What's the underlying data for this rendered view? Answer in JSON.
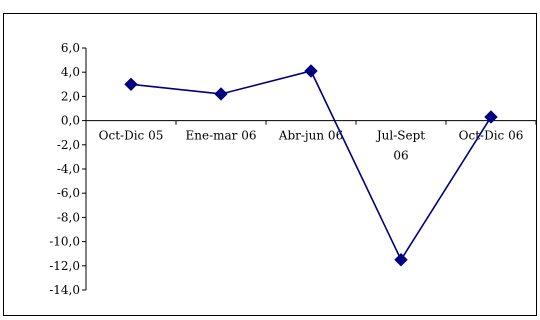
{
  "chart_data": {
    "type": "line",
    "categories": [
      [
        "Oct-Dic 05"
      ],
      [
        "Ene-mar 06"
      ],
      [
        "Abr-jun 06"
      ],
      [
        "Jul-Sept",
        "06"
      ],
      [
        "Oct-Dic 06"
      ]
    ],
    "series": [
      {
        "values": [
          3.0,
          2.2,
          4.1,
          -11.5,
          0.3
        ]
      }
    ],
    "y_ticks": [
      "6,0",
      "4,0",
      "2,0",
      "0,0",
      "-2,0",
      "-4,0",
      "-6,0",
      "-8,0",
      "-10,0",
      "-12,0",
      "-14,0"
    ],
    "ylim": [
      -14,
      6
    ],
    "y_step": 2,
    "grid": false,
    "legend": "none",
    "colors": {
      "series_line": "#000080",
      "marker": "#000080",
      "axis": "#000000"
    }
  }
}
